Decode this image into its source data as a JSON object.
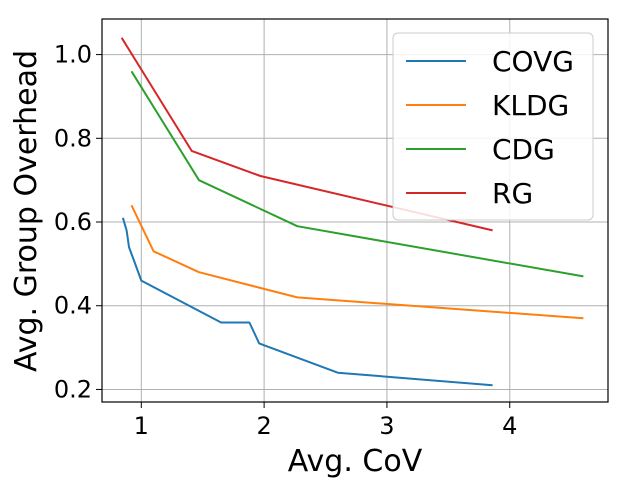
{
  "chart_data": {
    "type": "line",
    "title": "",
    "xlabel": "Avg. CoV",
    "ylabel": "Avg. Group Overhead",
    "xlim": [
      0.68,
      4.8
    ],
    "ylim": [
      0.17,
      1.085
    ],
    "xticks": [
      1,
      2,
      3,
      4
    ],
    "xtick_labels": [
      "1",
      "2",
      "3",
      "4"
    ],
    "yticks": [
      0.2,
      0.4,
      0.6,
      0.8,
      1.0
    ],
    "ytick_labels": [
      "0.2",
      "0.4",
      "0.6",
      "0.8",
      "1.0"
    ],
    "grid": true,
    "legend_position": "top-right",
    "series": [
      {
        "name": "COVG",
        "color": "#1f77b4",
        "x": [
          0.85,
          0.88,
          0.9,
          0.95,
          1.0,
          1.65,
          1.88,
          1.96,
          2.6,
          3.86
        ],
        "y": [
          0.61,
          0.58,
          0.54,
          0.5,
          0.46,
          0.36,
          0.36,
          0.31,
          0.24,
          0.21
        ]
      },
      {
        "name": "KLDG",
        "color": "#ff7f0e",
        "x": [
          0.92,
          1.1,
          1.47,
          2.27,
          4.6
        ],
        "y": [
          0.64,
          0.53,
          0.48,
          0.42,
          0.37
        ]
      },
      {
        "name": "CDG",
        "color": "#2ca02c",
        "x": [
          0.92,
          1.47,
          2.27,
          4.6
        ],
        "y": [
          0.96,
          0.7,
          0.59,
          0.47
        ]
      },
      {
        "name": "RG",
        "color": "#d62728",
        "x": [
          0.84,
          1.41,
          1.97,
          3.86
        ],
        "y": [
          1.04,
          0.77,
          0.71,
          0.58
        ]
      }
    ]
  }
}
